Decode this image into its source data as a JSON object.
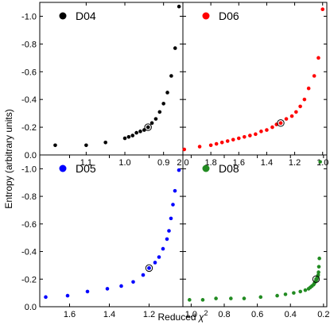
{
  "ylabel": "Entropy (arbitrary units)",
  "xlabel_prefix": "Reduced ",
  "xlabel_symbol": "χ",
  "xlabel_sup": "2",
  "chart_data": [
    {
      "type": "scatter",
      "name": "D04",
      "color": "#000000",
      "xlim": [
        1.22,
        0.85
      ],
      "ylim": [
        0.0,
        -1.1
      ],
      "xticks": [
        1.1,
        1.0,
        0.9
      ],
      "xticklabels": [
        "1.1",
        "1.0",
        "0.9"
      ],
      "yticks": [
        -1.0,
        -0.8,
        -0.6,
        -0.4,
        -0.2,
        0.0
      ],
      "yticklabels": [
        "-1.0",
        "-0.8",
        "-0.6",
        "-0.4",
        "-0.2",
        "0.0"
      ],
      "x": [
        1.18,
        1.1,
        1.05,
        1.0,
        0.99,
        0.98,
        0.97,
        0.96,
        0.95,
        0.94,
        0.93,
        0.92,
        0.91,
        0.9,
        0.89,
        0.88,
        0.87
      ],
      "y": [
        -0.07,
        -0.07,
        -0.09,
        -0.12,
        -0.13,
        -0.14,
        -0.16,
        -0.17,
        -0.18,
        -0.2,
        -0.23,
        -0.26,
        -0.31,
        -0.37,
        -0.45,
        -0.57,
        -0.77
      ],
      "highlight": {
        "x": 0.94,
        "y": -0.2
      },
      "extra_point": {
        "x": 0.86,
        "y": -1.07
      }
    },
    {
      "type": "scatter",
      "name": "D06",
      "color": "#ff0000",
      "xlim": [
        2.0,
        0.97
      ],
      "ylim": [
        0.0,
        -1.1
      ],
      "xticks": [
        2.0,
        1.8,
        1.6,
        1.4,
        1.2,
        1.0
      ],
      "xticklabels": [
        "2.0",
        "1.8",
        "1.6",
        "1.4",
        "1.2",
        "1.0"
      ],
      "x": [
        1.99,
        1.88,
        1.8,
        1.76,
        1.72,
        1.68,
        1.64,
        1.6,
        1.56,
        1.52,
        1.48,
        1.44,
        1.4,
        1.36,
        1.33,
        1.3,
        1.26,
        1.22,
        1.19,
        1.16,
        1.13,
        1.1,
        1.06,
        1.03,
        1.0
      ],
      "y": [
        -0.04,
        -0.06,
        -0.07,
        -0.08,
        -0.09,
        -0.1,
        -0.11,
        -0.12,
        -0.13,
        -0.14,
        -0.15,
        -0.17,
        -0.18,
        -0.2,
        -0.22,
        -0.23,
        -0.26,
        -0.28,
        -0.31,
        -0.35,
        -0.4,
        -0.48,
        -0.57,
        -0.7,
        -1.05
      ],
      "highlight": {
        "x": 1.3,
        "y": -0.23
      }
    },
    {
      "type": "scatter",
      "name": "D05",
      "color": "#0000ff",
      "xlim": [
        1.75,
        1.03
      ],
      "ylim": [
        0.0,
        -1.1
      ],
      "xticks": [
        1.6,
        1.4,
        1.2
      ],
      "xticklabels": [
        "1.6",
        "1.4",
        "1.2"
      ],
      "yticks": [
        -1.0,
        -0.8,
        -0.6,
        -0.4,
        -0.2,
        0.0
      ],
      "yticklabels": [
        "-1.0",
        "-0.8",
        "-0.6",
        "-0.4",
        "-0.2",
        "0.0"
      ],
      "x": [
        1.72,
        1.61,
        1.51,
        1.41,
        1.34,
        1.28,
        1.23,
        1.2,
        1.17,
        1.15,
        1.13,
        1.11,
        1.1,
        1.09,
        1.08,
        1.07,
        1.05
      ],
      "y": [
        -0.07,
        -0.08,
        -0.11,
        -0.13,
        -0.15,
        -0.18,
        -0.23,
        -0.28,
        -0.32,
        -0.36,
        -0.42,
        -0.49,
        -0.55,
        -0.64,
        -0.74,
        -0.84,
        -0.99
      ],
      "highlight": {
        "x": 1.2,
        "y": -0.28
      }
    },
    {
      "type": "scatter",
      "name": "D08",
      "color": "#228b22",
      "xlim": [
        1.05,
        0.18
      ],
      "ylim": [
        0.0,
        -1.1
      ],
      "xticks": [
        1.0,
        0.8,
        0.6,
        0.4,
        0.2
      ],
      "xticklabels": [
        "1.0",
        "0.8",
        "0.6",
        "0.4",
        "0.2"
      ],
      "x": [
        1.01,
        0.93,
        0.85,
        0.76,
        0.68,
        0.58,
        0.48,
        0.43,
        0.38,
        0.34,
        0.31,
        0.29,
        0.28,
        0.27,
        0.26,
        0.255,
        0.25,
        0.245,
        0.24,
        0.238,
        0.235,
        0.232,
        0.23,
        0.228,
        0.225,
        0.22
      ],
      "y": [
        -0.05,
        -0.05,
        -0.06,
        -0.06,
        -0.06,
        -0.07,
        -0.08,
        -0.09,
        -0.1,
        -0.11,
        -0.12,
        -0.13,
        -0.14,
        -0.15,
        -0.16,
        -0.17,
        -0.18,
        -0.19,
        -0.2,
        -0.21,
        -0.22,
        -0.23,
        -0.25,
        -0.29,
        -0.35,
        -1.05
      ],
      "highlight": {
        "x": 0.245,
        "y": -0.2
      }
    }
  ]
}
